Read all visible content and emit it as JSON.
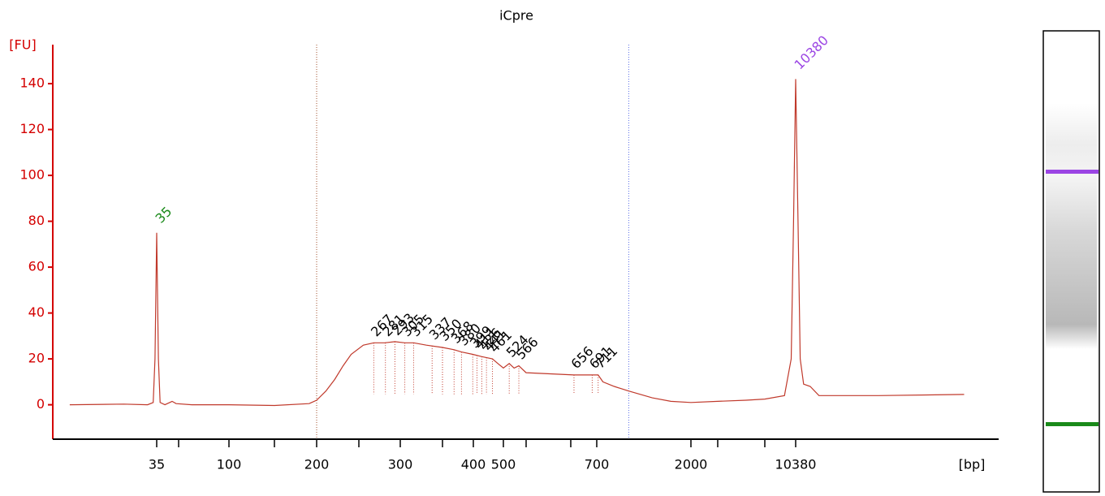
{
  "chart_data": {
    "type": "line",
    "title": "iCpre",
    "ylabel": "[FU]",
    "xlabel": "[bp]",
    "color": "#c0392b",
    "axis_color": "#d40000",
    "ylim": [
      -15,
      157
    ],
    "yticks": [
      0,
      20,
      40,
      60,
      80,
      100,
      120,
      140
    ],
    "xlim": [
      6,
      140000
    ],
    "xticks": [
      35,
      100,
      200,
      300,
      400,
      500,
      700,
      2000,
      10380
    ],
    "xminor_ticks": [
      50,
      150,
      250,
      350,
      600,
      650,
      3000,
      7000
    ],
    "region": [
      200,
      1000
    ],
    "x": [
      8,
      20,
      30,
      33,
      34,
      35,
      36,
      37,
      40,
      45,
      48,
      60,
      100,
      150,
      190,
      200,
      210,
      220,
      230,
      240,
      255,
      267,
      280,
      293,
      305,
      315,
      330,
      350,
      368,
      380,
      399,
      426,
      461,
      480,
      500,
      524,
      545,
      566,
      600,
      656,
      691,
      711,
      750,
      850,
      1000,
      1300,
      1600,
      2000,
      3000,
      5000,
      7000,
      9000,
      9800,
      10100,
      10380,
      10700,
      11000,
      11500,
      12500,
      14000,
      30000,
      90000
    ],
    "values": [
      0,
      0.3,
      0,
      1,
      20,
      75,
      20,
      1,
      0,
      1.5,
      0.5,
      0,
      0,
      -0.3,
      0.5,
      2,
      6,
      11,
      17,
      22,
      26,
      27,
      27,
      27.5,
      27,
      27,
      26,
      25,
      24,
      23,
      22,
      21,
      20,
      18,
      16,
      18,
      16,
      17,
      14,
      13,
      13,
      13,
      10,
      8,
      6,
      3,
      1.5,
      1,
      1.5,
      2,
      2.5,
      4,
      20,
      80,
      142,
      80,
      20,
      9,
      8,
      4,
      4,
      4.5
    ],
    "markers": [
      {
        "bp": 35,
        "color": "#1a8a1a"
      },
      {
        "bp": 10380,
        "color": "#9b45e4"
      }
    ],
    "peaks": [
      267,
      281,
      293,
      305,
      315,
      337,
      350,
      368,
      380,
      399,
      411,
      426,
      441,
      461,
      524,
      566,
      656,
      691,
      711
    ]
  }
}
